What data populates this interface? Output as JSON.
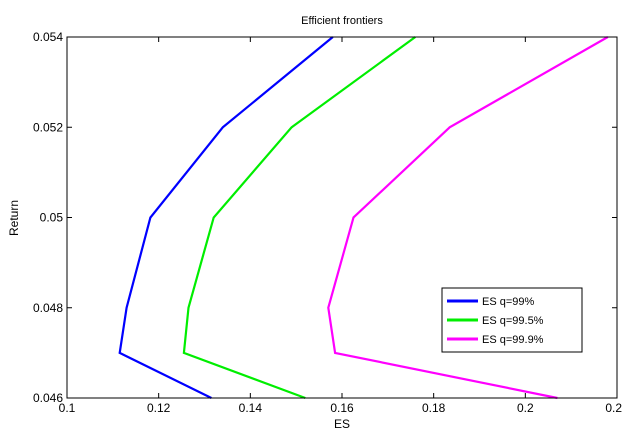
{
  "chart_data": {
    "type": "line",
    "title": "Efficient frontiers",
    "xlabel": "ES",
    "ylabel": "Return",
    "xlim": [
      0.1,
      0.22
    ],
    "ylim": [
      0.046,
      0.054
    ],
    "xticks": [
      "0.1",
      "0.12",
      "0.14",
      "0.16",
      "0.18",
      "0.2",
      "0.22"
    ],
    "yticks": [
      "0.046",
      "0.048",
      "0.05",
      "0.052",
      "0.054"
    ],
    "grid": false,
    "legend_position": "bottom-right",
    "series": [
      {
        "name": "ES q=99%",
        "color": "#0000ff",
        "x": [
          0.1315,
          0.1115,
          0.113,
          0.1182,
          0.134,
          0.158
        ],
        "y": [
          0.046,
          0.047,
          0.048,
          0.05,
          0.052,
          0.054
        ]
      },
      {
        "name": "ES q=99.5%",
        "color": "#00ee00",
        "x": [
          0.152,
          0.1255,
          0.1265,
          0.132,
          0.149,
          0.176
        ],
        "y": [
          0.046,
          0.047,
          0.048,
          0.05,
          0.052,
          0.054
        ]
      },
      {
        "name": "ES q=99.9%",
        "color": "#ff00ff",
        "x": [
          0.207,
          0.1585,
          0.157,
          0.1625,
          0.1835,
          0.218
        ],
        "y": [
          0.046,
          0.047,
          0.048,
          0.05,
          0.052,
          0.054
        ]
      }
    ]
  }
}
